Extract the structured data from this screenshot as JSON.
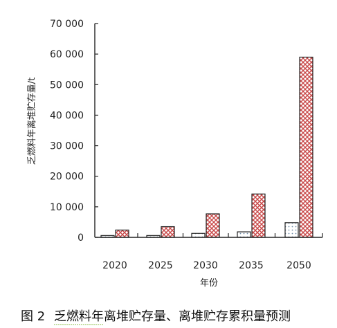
{
  "chart_data": {
    "type": "bar",
    "categories": [
      "2020",
      "2025",
      "2030",
      "2035",
      "2050"
    ],
    "series": [
      {
        "values": [
          600,
          600,
          1300,
          1800,
          4800
        ],
        "fill": "#e8eef4",
        "pattern": "dots"
      },
      {
        "values": [
          2400,
          3500,
          7700,
          14200,
          59000
        ],
        "fill": "#c94a4a",
        "pattern": "crosshatch"
      }
    ],
    "ylim": [
      0,
      70000
    ],
    "yticks": [
      0,
      10000,
      20000,
      30000,
      40000,
      50000,
      60000,
      70000
    ],
    "ytick_labels": [
      "0",
      "10 000",
      "20 000",
      "30 000",
      "40 000",
      "50 000",
      "60 000",
      "70 000"
    ],
    "ylabel": "乏燃料年离堆贮存量/t",
    "xlabel": "年份",
    "title": "",
    "grid": false,
    "legend": "none"
  },
  "caption": {
    "figure_label": "图 2",
    "text": "乏燃料年离堆贮存量、离堆贮存累积量预测"
  },
  "colors": {
    "axis": "#222222",
    "bar_outline": "#222222",
    "caption_underline": "#8cbf4a"
  }
}
